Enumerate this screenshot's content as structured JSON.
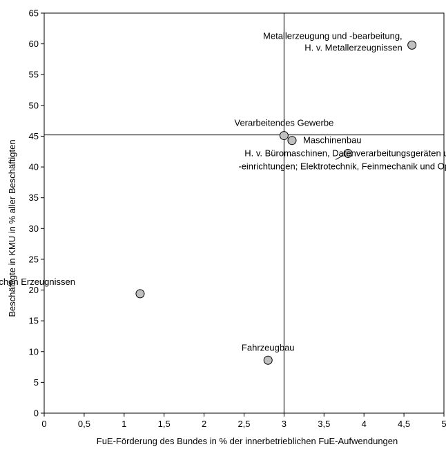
{
  "chart_data": {
    "type": "scatter",
    "title": "",
    "xlabel": "FuE-Förderung des Bundes in % der innerbetrieblichen FuE-Aufwendungen",
    "ylabel": "Beschäftigte in KMU in % aller Beschäftigten",
    "xlim": [
      0,
      5
    ],
    "ylim": [
      0,
      65
    ],
    "x_ticks": [
      "0",
      "0,5",
      "1",
      "1,5",
      "2",
      "2,5",
      "3",
      "3,5",
      "4",
      "4,5",
      "5"
    ],
    "y_ticks": [
      "0",
      "5",
      "10",
      "15",
      "20",
      "25",
      "30",
      "35",
      "40",
      "45",
      "50",
      "55",
      "60",
      "65"
    ],
    "reference_lines": {
      "x": 3.0,
      "y": 45.2
    },
    "grid": false,
    "marker_color": "#c0c0c0",
    "points": [
      {
        "x": 4.6,
        "y": 59.8,
        "label": [
          "Metallerzeugung und -bearbeitung,",
          "H. v. Metallerzeugnissen"
        ]
      },
      {
        "x": 3.0,
        "y": 45.1,
        "label": [
          "Verarbeitendes Gewerbe"
        ]
      },
      {
        "x": 3.1,
        "y": 44.3,
        "label": [
          "Maschinenbau"
        ]
      },
      {
        "x": 3.8,
        "y": 42.2,
        "label": [
          "H. v. Büromaschinen, Datenverarbeitungsgeräten und",
          "-einrichtungen; Elektrotechnik, Feinmechanik und Optik"
        ]
      },
      {
        "x": 1.2,
        "y": 19.4,
        "label": [
          "H. v. chemischen Erzeugnissen"
        ]
      },
      {
        "x": 2.8,
        "y": 8.6,
        "label": [
          "Fahrzeugbau"
        ]
      }
    ]
  }
}
